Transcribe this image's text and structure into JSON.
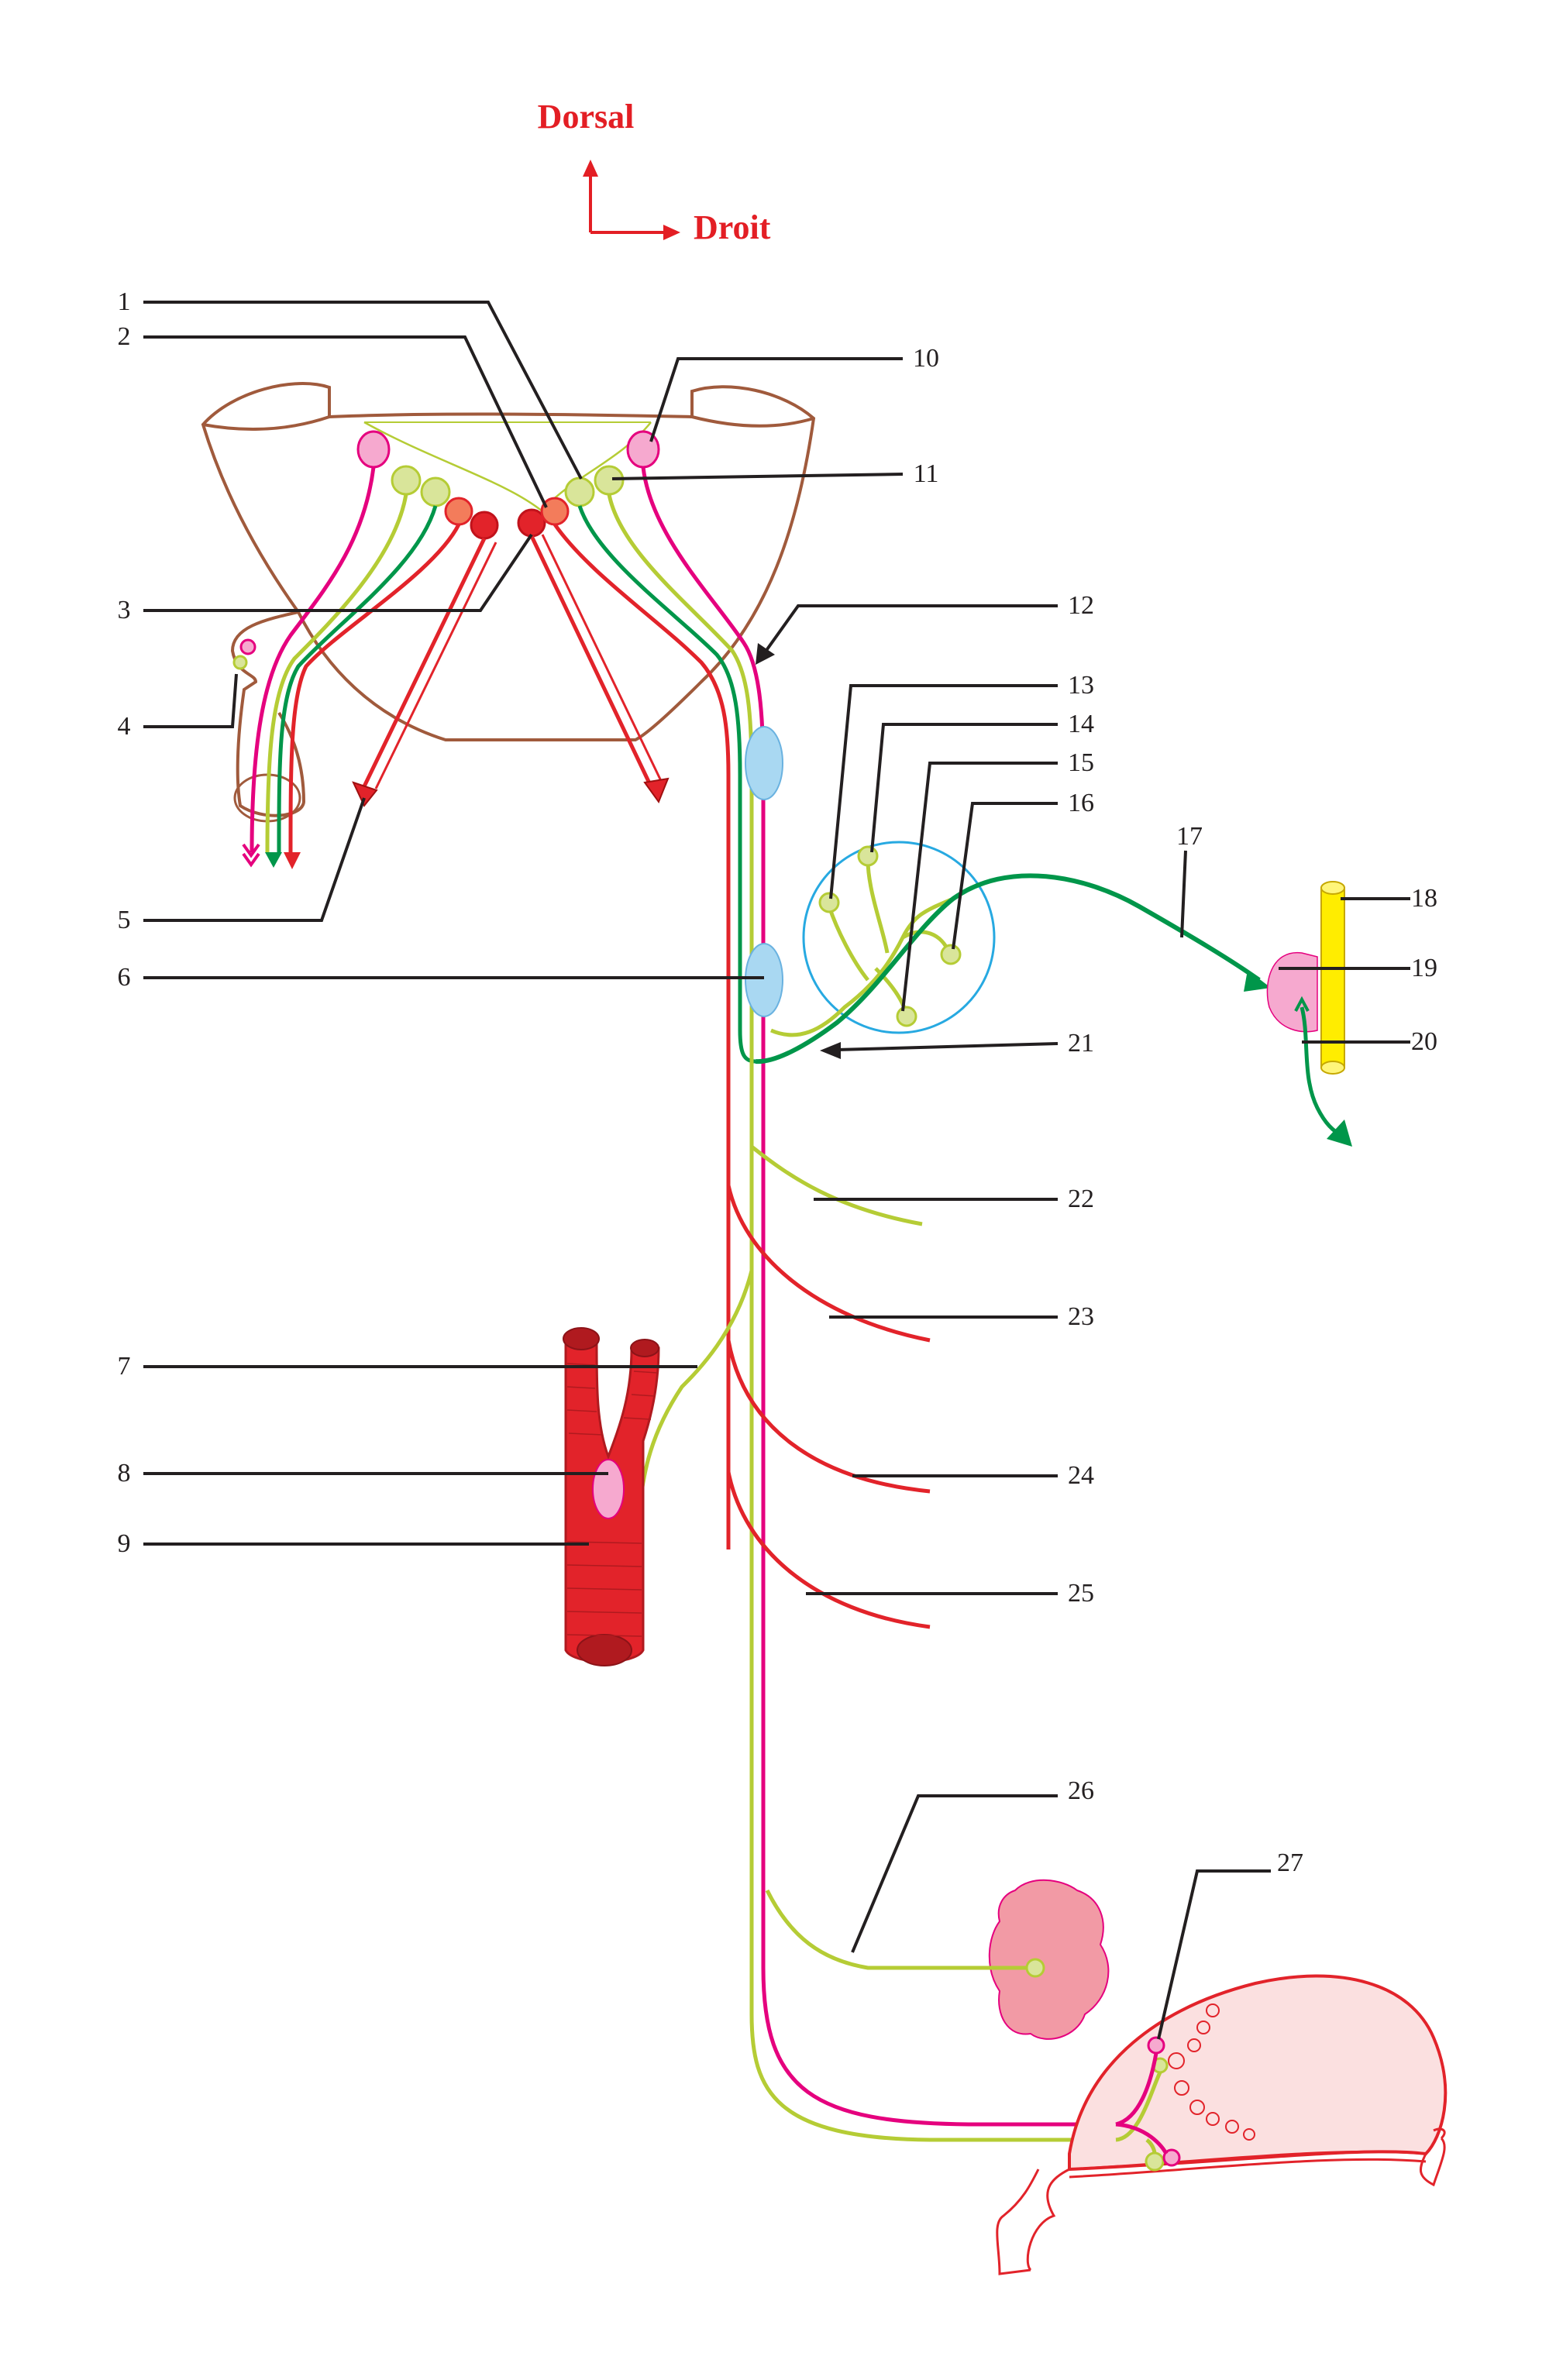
{
  "orientation": {
    "dorsal_label": "Dorsal",
    "right_label": "Droit"
  },
  "colors": {
    "magenta_fibers": "#e5007e",
    "yellow_green_fibers": "#b5cc35",
    "green_fibers": "#00964a",
    "red_fibers": "#e2232a",
    "ganglion_blue": "#a9d8f2",
    "pink_nucleus": "#f6a9cf",
    "yellow_vessel": "#ffed00",
    "cord_outline": "#a05a3c",
    "label_text": "#231f20",
    "orientation_text": "#e31e24"
  },
  "labels": {
    "l1": "1",
    "l2": "2",
    "l3": "3",
    "l4": "4",
    "l5": "5",
    "l6": "6",
    "l7": "7",
    "l8": "8",
    "l9": "9",
    "l10": "10",
    "l11": "11",
    "l12": "12",
    "l13": "13",
    "l14": "14",
    "l15": "15",
    "l16": "16",
    "l17": "17",
    "l18": "18",
    "l19": "19",
    "l20": "20",
    "l21": "21",
    "l22": "22",
    "l23": "23",
    "l24": "24",
    "l25": "25",
    "l26": "26",
    "l27": "27"
  }
}
